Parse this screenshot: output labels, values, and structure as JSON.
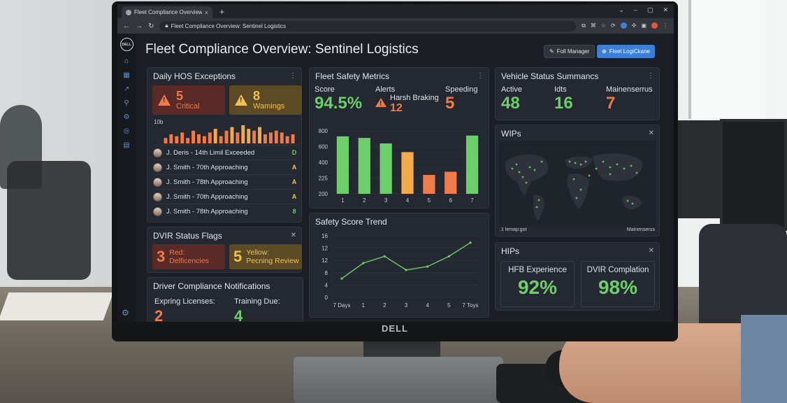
{
  "browser": {
    "tab_title": "Fleet Compliance Overview - Sentin",
    "address": "Fleet Compliance Overview: Sentinel Logistics",
    "new_tab": "+",
    "tab_close": "×"
  },
  "sidebar": {
    "logo": "DELL",
    "items": [
      "home-icon",
      "grid-icon",
      "chart-icon",
      "org-icon",
      "gear-icon",
      "target-icon",
      "list-icon"
    ],
    "settings": "settings-icon"
  },
  "header": {
    "title": "Fleet Compliance Overview: Sentinel Logistics",
    "manager_button": "Foll Manager",
    "logi_button": "Fleet LogiCkane"
  },
  "hos": {
    "title": "Daily HOS Exceptions",
    "critical_count": "5",
    "critical_label": "Critical",
    "warning_count": "8",
    "warning_label": "Wamings",
    "mini_axis": "10b",
    "mini_bars": [
      3,
      5,
      4,
      6,
      3,
      7,
      5,
      4,
      6,
      8,
      4,
      7,
      9,
      6,
      10,
      8,
      7,
      9,
      5,
      6,
      7,
      6,
      4,
      5
    ],
    "drivers": [
      {
        "text": "J. Deris - 14th Limil Exceeded",
        "flag": "D",
        "color": "green"
      },
      {
        "text": "J. Smith - 70th Approaching",
        "flag": "A",
        "color": "yellow"
      },
      {
        "text": "J. Smith - 78th Approaching",
        "flag": "A",
        "color": "yellow"
      },
      {
        "text": "J. Smith - 70th Approaching",
        "flag": "A",
        "color": "yellow"
      },
      {
        "text": "J. Smith - 78th Approaching",
        "flag": "8",
        "color": "green"
      }
    ]
  },
  "dvir": {
    "title": "DVIR Status Flags",
    "red_count": "3",
    "red_label_1": "Red:",
    "red_label_2": "Delficencies",
    "yellow_count": "5",
    "yellow_label_1": "Yellow:",
    "yellow_label_2": "Pecning Review"
  },
  "notifications": {
    "title": "Driver Compliance Notifications",
    "expiring_label": "Expring Licenses:",
    "expiring_value": "2",
    "training_label": "Training Due:",
    "training_value": "4"
  },
  "metrics": {
    "title": "Fleet Safety Metrics",
    "score_label": "Score",
    "score_value": "94.5%",
    "alerts_label": "Alerts",
    "alerts_sub": "Harsh Braking",
    "alerts_value": "12",
    "speeding_label": "Speeding",
    "speeding_value": "5"
  },
  "trend": {
    "title": "Safety Score Trend"
  },
  "vehicle": {
    "title": "Vehicle Status Summancs",
    "active_label": "Active",
    "active_value": "48",
    "idle_label": "Idts",
    "idle_value": "16",
    "maint_label": "Mainenserrus",
    "maint_value": "7"
  },
  "map": {
    "title": "WIPs",
    "foot_left": ".1 lemap:ɡot",
    "foot_right": "Mainenserus"
  },
  "kpi": {
    "title": "HIPs",
    "hfb_label": "HFB Experience",
    "hfb_value": "92%",
    "dvir_label": "DVIR Complation",
    "dvir_value": "98%"
  },
  "colors": {
    "green": "#6ccf6a",
    "red": "#ef7a4a",
    "orange": "#f4a94a",
    "yellow": "#f2c14e",
    "accent": "#3c7fd6"
  },
  "monitor_brand": "DELL",
  "chart_data": [
    {
      "type": "bar",
      "categories": [
        "1",
        "2",
        "3",
        "4",
        "5",
        "6",
        "7"
      ],
      "values": [
        730,
        710,
        640,
        530,
        240,
        280,
        740
      ],
      "bar_colors": [
        "#6ccf6a",
        "#6ccf6a",
        "#6ccf6a",
        "#f4a94a",
        "#ef7a4a",
        "#ef7a4a",
        "#6ccf6a"
      ],
      "y_ticks": [
        "800",
        "600",
        "400",
        "225",
        "200"
      ],
      "ylim": [
        0,
        800
      ],
      "grid": true
    },
    {
      "type": "line",
      "x_labels": [
        "7 Days",
        "1",
        "2",
        "3",
        "4",
        "5",
        "7 Toys"
      ],
      "values": [
        5.5,
        10,
        12,
        8,
        9,
        12,
        16
      ],
      "y_ticks": [
        "16",
        "12",
        "12",
        "8",
        "4",
        "0"
      ],
      "ylim": [
        0,
        18
      ],
      "color": "#6ccf6a",
      "grid": true
    }
  ]
}
